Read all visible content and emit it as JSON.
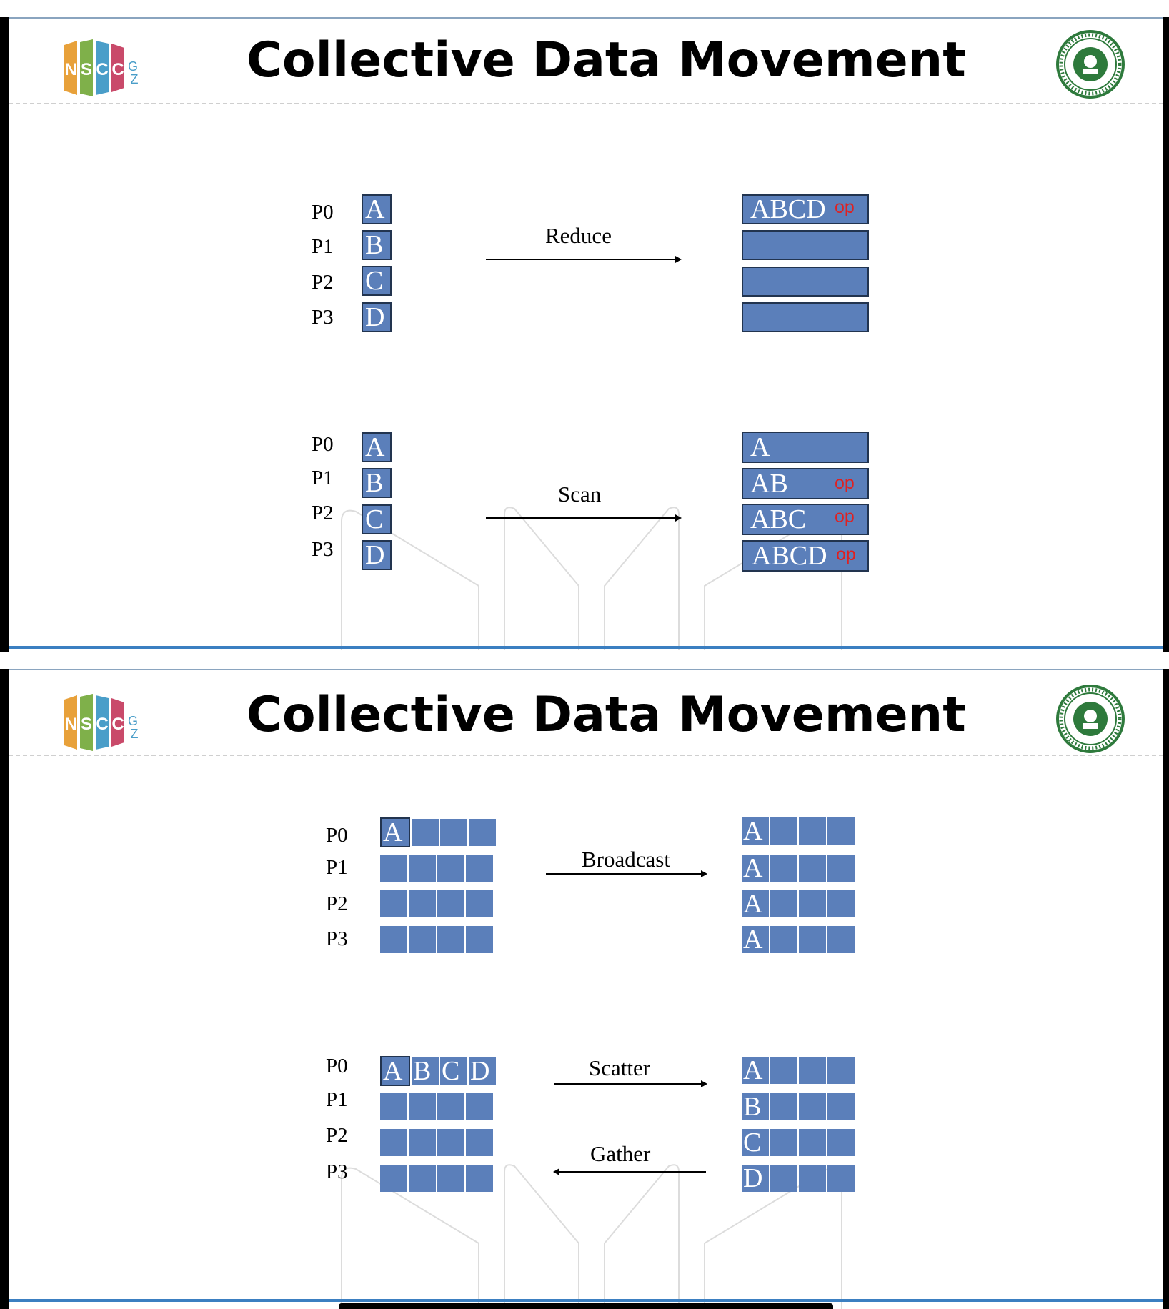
{
  "slides": [
    {
      "title": "Collective Data Movement",
      "reduce": {
        "labels": [
          "P0",
          "P1",
          "P2",
          "P3"
        ],
        "inputs": [
          "A",
          "B",
          "C",
          "D"
        ],
        "operation": "Reduce",
        "outputs": [
          "ABCD",
          "",
          "",
          ""
        ],
        "op_marks": [
          "op",
          "",
          "",
          ""
        ]
      },
      "scan": {
        "labels": [
          "P0",
          "P1",
          "P2",
          "P3"
        ],
        "inputs": [
          "A",
          "B",
          "C",
          "D"
        ],
        "operation": "Scan",
        "outputs": [
          "A",
          "AB",
          "ABC",
          "ABCD"
        ],
        "op_marks": [
          "",
          "op",
          "op",
          "op"
        ]
      }
    },
    {
      "title": "Collective Data Movement",
      "broadcast": {
        "labels": [
          "P0",
          "P1",
          "P2",
          "P3"
        ],
        "input_first_cells": [
          "A",
          "",
          "",
          ""
        ],
        "operation": "Broadcast",
        "output_first_cells": [
          "A",
          "A",
          "A",
          "A"
        ]
      },
      "scatter_gather": {
        "labels": [
          "P0",
          "P1",
          "P2",
          "P3"
        ],
        "p0_cells": [
          "A",
          "B",
          "C",
          "D"
        ],
        "scatter": "Scatter",
        "gather": "Gather",
        "output_first_cells": [
          "A",
          "B",
          "C",
          "D"
        ]
      }
    }
  ],
  "logos": {
    "left": "nscc-gz-logo",
    "right": "sun-yat-sen-university-seal",
    "left_letters": [
      "N",
      "S",
      "C",
      "C",
      "G",
      "Z"
    ],
    "seal_text": "SUN YAT-SEN UNIVERSITY"
  },
  "colors": {
    "cell_fill": "#5b7fba",
    "cell_border": "#22344f",
    "op_text": "#e02020",
    "accent_line": "#3b7fc1"
  }
}
